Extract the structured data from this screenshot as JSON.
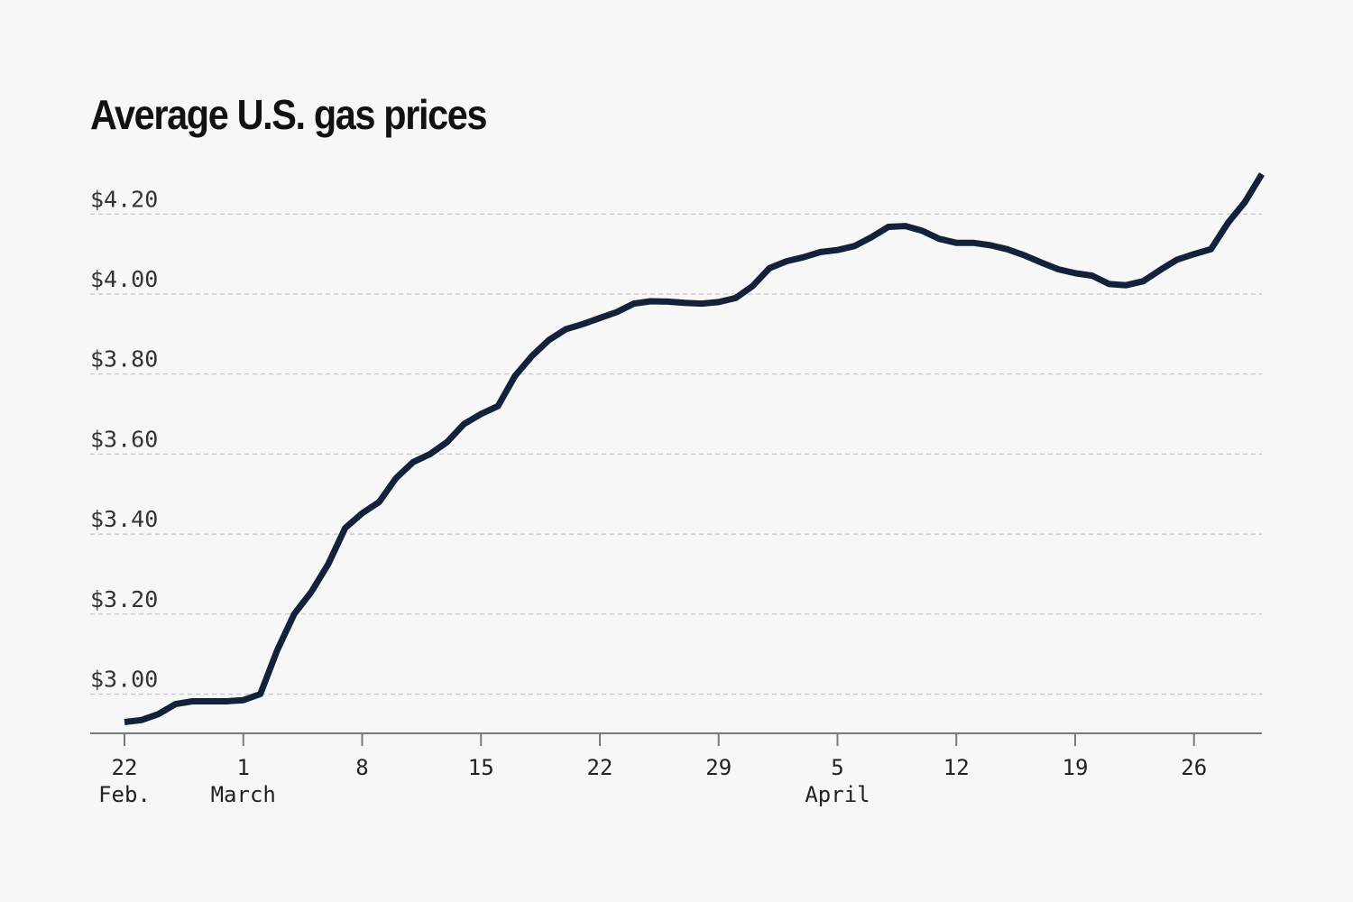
{
  "chart_data": {
    "type": "line",
    "title": "Average U.S. gas prices",
    "xlabel": "",
    "ylabel": "",
    "ylim": [
      2.9,
      4.3
    ],
    "grid": true,
    "line_color": "#13213a",
    "y_ticks": [
      {
        "value": 3.0,
        "label": "$3.00"
      },
      {
        "value": 3.2,
        "label": "$3.20"
      },
      {
        "value": 3.4,
        "label": "$3.40"
      },
      {
        "value": 3.6,
        "label": "$3.60"
      },
      {
        "value": 3.8,
        "label": "$3.80"
      },
      {
        "value": 4.0,
        "label": "$4.00"
      },
      {
        "value": 4.2,
        "label": "$4.20"
      }
    ],
    "x_ticks": [
      {
        "date": "2022-02-22",
        "label": "22",
        "sublabel": "Feb."
      },
      {
        "date": "2022-03-01",
        "label": "1",
        "sublabel": "March"
      },
      {
        "date": "2022-03-08",
        "label": "8",
        "sublabel": ""
      },
      {
        "date": "2022-03-15",
        "label": "15",
        "sublabel": ""
      },
      {
        "date": "2022-03-22",
        "label": "22",
        "sublabel": ""
      },
      {
        "date": "2022-03-29",
        "label": "29",
        "sublabel": ""
      },
      {
        "date": "2022-04-05",
        "label": "5",
        "sublabel": "April"
      },
      {
        "date": "2022-04-12",
        "label": "12",
        "sublabel": ""
      },
      {
        "date": "2022-04-19",
        "label": "19",
        "sublabel": ""
      },
      {
        "date": "2022-04-26",
        "label": "26",
        "sublabel": ""
      }
    ],
    "series": [
      {
        "points": [
          [
            "2022-02-22",
            2.93
          ],
          [
            "2022-02-23",
            2.935
          ],
          [
            "2022-02-24",
            2.95
          ],
          [
            "2022-02-25",
            2.975
          ],
          [
            "2022-02-26",
            2.982
          ],
          [
            "2022-02-27",
            2.982
          ],
          [
            "2022-02-28",
            2.982
          ],
          [
            "2022-03-01",
            2.985
          ],
          [
            "2022-03-02",
            3.0
          ],
          [
            "2022-03-03",
            3.11
          ],
          [
            "2022-03-04",
            3.2
          ],
          [
            "2022-03-05",
            3.255
          ],
          [
            "2022-03-06",
            3.325
          ],
          [
            "2022-03-07",
            3.415
          ],
          [
            "2022-03-08",
            3.452
          ],
          [
            "2022-03-09",
            3.48
          ],
          [
            "2022-03-10",
            3.54
          ],
          [
            "2022-03-11",
            3.58
          ],
          [
            "2022-03-12",
            3.6
          ],
          [
            "2022-03-13",
            3.63
          ],
          [
            "2022-03-14",
            3.675
          ],
          [
            "2022-03-15",
            3.7
          ],
          [
            "2022-03-16",
            3.72
          ],
          [
            "2022-03-17",
            3.795
          ],
          [
            "2022-03-18",
            3.845
          ],
          [
            "2022-03-19",
            3.885
          ],
          [
            "2022-03-20",
            3.912
          ],
          [
            "2022-03-21",
            3.925
          ],
          [
            "2022-03-22",
            3.94
          ],
          [
            "2022-03-23",
            3.955
          ],
          [
            "2022-03-24",
            3.976
          ],
          [
            "2022-03-25",
            3.982
          ],
          [
            "2022-03-26",
            3.981
          ],
          [
            "2022-03-27",
            3.978
          ],
          [
            "2022-03-28",
            3.976
          ],
          [
            "2022-03-29",
            3.98
          ],
          [
            "2022-03-30",
            3.99
          ],
          [
            "2022-03-31",
            4.02
          ],
          [
            "2022-04-01",
            4.065
          ],
          [
            "2022-04-02",
            4.082
          ],
          [
            "2022-04-03",
            4.092
          ],
          [
            "2022-04-04",
            4.105
          ],
          [
            "2022-04-05",
            4.11
          ],
          [
            "2022-04-06",
            4.12
          ],
          [
            "2022-04-07",
            4.142
          ],
          [
            "2022-04-08",
            4.168
          ],
          [
            "2022-04-09",
            4.17
          ],
          [
            "2022-04-10",
            4.158
          ],
          [
            "2022-04-11",
            4.138
          ],
          [
            "2022-04-12",
            4.128
          ],
          [
            "2022-04-13",
            4.128
          ],
          [
            "2022-04-14",
            4.122
          ],
          [
            "2022-04-15",
            4.112
          ],
          [
            "2022-04-16",
            4.097
          ],
          [
            "2022-04-17",
            4.079
          ],
          [
            "2022-04-18",
            4.062
          ],
          [
            "2022-04-19",
            4.052
          ],
          [
            "2022-04-20",
            4.046
          ],
          [
            "2022-04-21",
            4.025
          ],
          [
            "2022-04-22",
            4.022
          ],
          [
            "2022-04-23",
            4.032
          ],
          [
            "2022-04-24",
            4.06
          ],
          [
            "2022-04-25",
            4.086
          ],
          [
            "2022-04-26",
            4.1
          ],
          [
            "2022-04-27",
            4.112
          ],
          [
            "2022-04-28",
            4.178
          ],
          [
            "2022-04-29",
            4.23
          ],
          [
            "2022-04-30",
            4.3
          ]
        ]
      }
    ]
  }
}
